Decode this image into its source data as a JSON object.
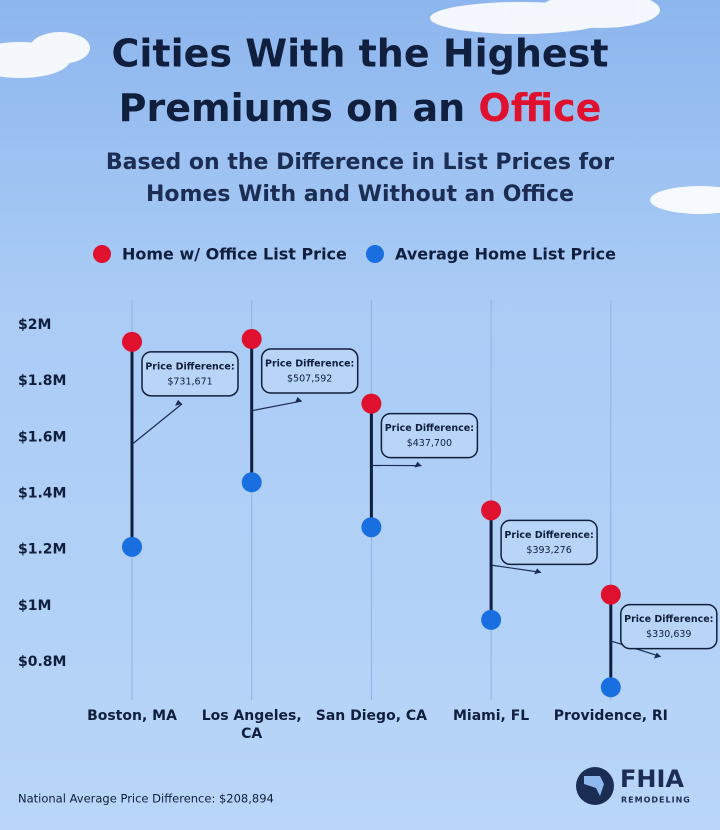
{
  "chart_data": {
    "type": "dumbbell",
    "title": "Cities With the Highest Premiums on an",
    "title_highlight": "Office",
    "subtitle": "Based on the Difference in List Prices for Homes With and Without an Office",
    "categories": [
      "Boston, MA",
      "Los Angeles, CA",
      "San Diego, CA",
      "Miami, FL",
      "Providence, RI"
    ],
    "series": [
      {
        "name": "Home w/ Office List Price",
        "color": "#e0102f",
        "values": [
          1940000,
          1950000,
          1720000,
          1340000,
          1040000
        ]
      },
      {
        "name": "Average Home List Price",
        "color": "#1a6fe0",
        "values": [
          1210000,
          1440000,
          1280000,
          950000,
          710000
        ]
      }
    ],
    "annotations": [
      {
        "label": "Price Difference:",
        "value": "$731,671"
      },
      {
        "label": "Price Difference:",
        "value": "$507,592"
      },
      {
        "label": "Price Difference:",
        "value": "$437,700"
      },
      {
        "label": "Price Difference:",
        "value": "$393,276"
      },
      {
        "label": "Price Difference:",
        "value": "$330,639"
      }
    ],
    "ylim": [
      800000,
      2000000
    ],
    "yticks": [
      {
        "value": 800000,
        "label": "$0.8M"
      },
      {
        "value": 1000000,
        "label": "$1M"
      },
      {
        "value": 1200000,
        "label": "$1.2M"
      },
      {
        "value": 1400000,
        "label": "$1.4M"
      },
      {
        "value": 1600000,
        "label": "$1.6M"
      },
      {
        "value": 1800000,
        "label": "$1.8M"
      },
      {
        "value": 2000000,
        "label": "$2M"
      }
    ],
    "grid": true,
    "footnote": "National Average Price Difference: $208,894",
    "logo": {
      "name": "FHIA",
      "tagline": "REMODELING"
    }
  }
}
